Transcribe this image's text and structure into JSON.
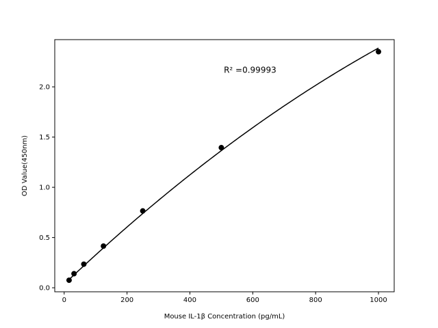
{
  "chart_data": {
    "type": "scatter",
    "title": "",
    "xlabel": "Mouse IL-1β Concentration (pg/mL)",
    "ylabel": "OD Value(450nm)",
    "xlim": [
      -30,
      1050
    ],
    "ylim": [
      -0.04,
      2.47
    ],
    "xticks": [
      0,
      200,
      400,
      600,
      800,
      1000
    ],
    "yticks": [
      0.0,
      0.5,
      1.0,
      1.5,
      2.0
    ],
    "xtick_labels": [
      "0",
      "200",
      "400",
      "600",
      "800",
      "1000"
    ],
    "ytick_labels": [
      "0.0",
      "0.5",
      "1.0",
      "1.5",
      "2.0"
    ],
    "grid": false,
    "legend": "none",
    "point_color": "#000000",
    "line_color": "#000000",
    "series": [
      {
        "x": [
          15.6,
          31.25,
          62.5,
          125,
          250,
          500,
          1000
        ],
        "y": [
          0.075,
          0.14,
          0.235,
          0.415,
          0.765,
          1.395,
          2.35
        ]
      }
    ],
    "fit": {
      "kind": "quadratic",
      "coefficients": [
        0.0358,
        0.0029665,
        -6.16e-07
      ]
    },
    "annotations": [
      {
        "text": "R² =0.99993",
        "x": 508,
        "y": 2.14
      }
    ]
  }
}
